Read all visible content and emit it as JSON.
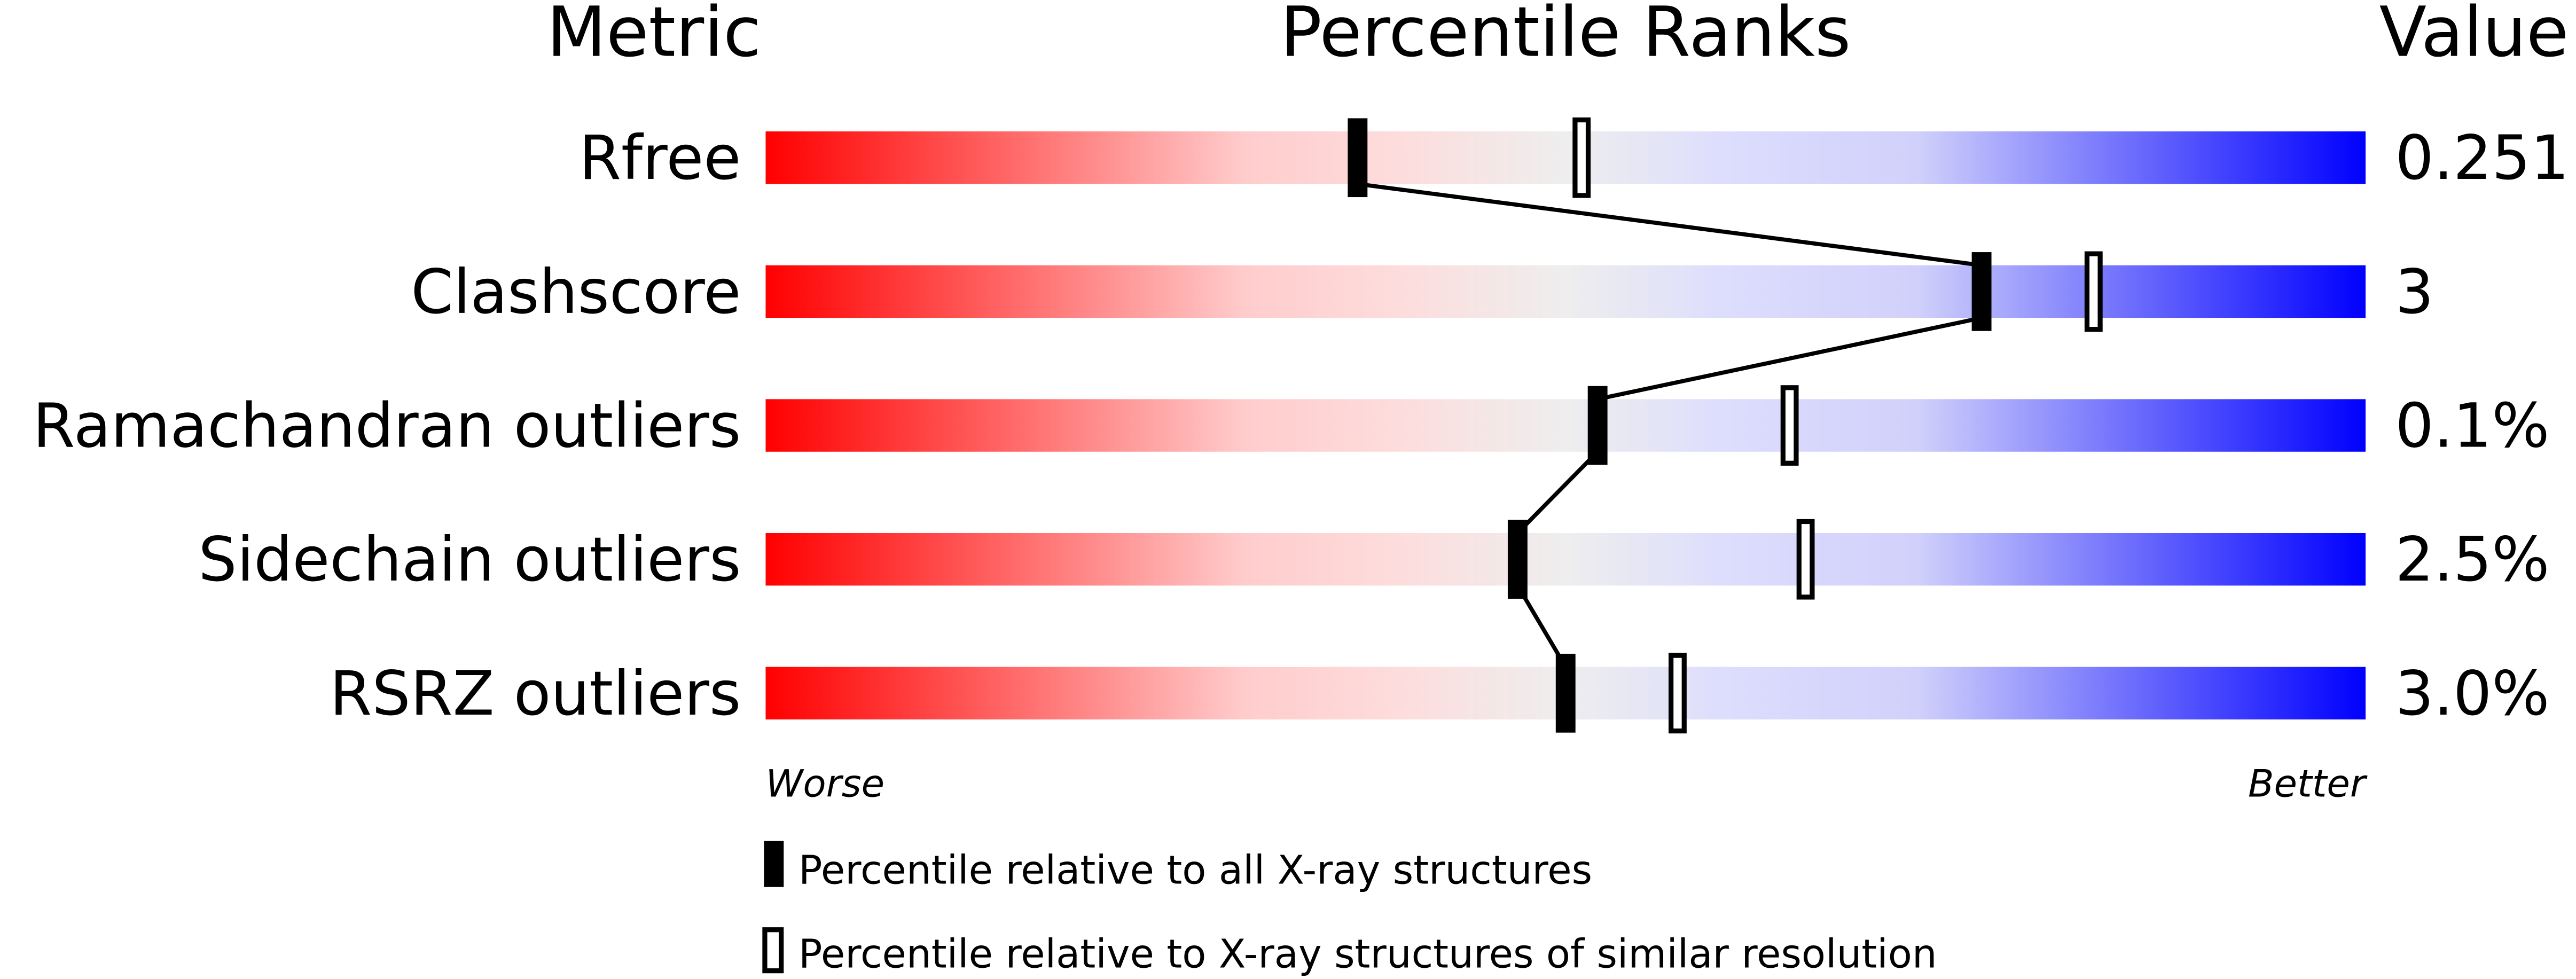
{
  "chart_data": {
    "type": "percentile-slider",
    "headers": {
      "metric": "Metric",
      "ranks": "Percentile Ranks",
      "value": "Value"
    },
    "xlim": [
      0,
      100
    ],
    "axis_labels": {
      "left": "Worse",
      "right": "Better"
    },
    "gradient_colors": [
      "#ff0000",
      "#fddddd",
      "#eeeeee",
      "#ddddfd",
      "#0000ff"
    ],
    "rows": [
      {
        "metric": "Rfree",
        "value": "0.251",
        "percentile_all": 37,
        "percentile_similar": 51
      },
      {
        "metric": "Clashscore",
        "value": "3",
        "percentile_all": 76,
        "percentile_similar": 83
      },
      {
        "metric": "Ramachandran outliers",
        "value": "0.1%",
        "percentile_all": 52,
        "percentile_similar": 64
      },
      {
        "metric": "Sidechain outliers",
        "value": "2.5%",
        "percentile_all": 47,
        "percentile_similar": 65
      },
      {
        "metric": "RSRZ outliers",
        "value": "3.0%",
        "percentile_all": 50,
        "percentile_similar": 57
      }
    ],
    "legend": [
      {
        "marker": "filled",
        "label": "Percentile relative to all X-ray structures"
      },
      {
        "marker": "open",
        "label": "Percentile relative to X-ray structures of similar resolution"
      }
    ]
  }
}
